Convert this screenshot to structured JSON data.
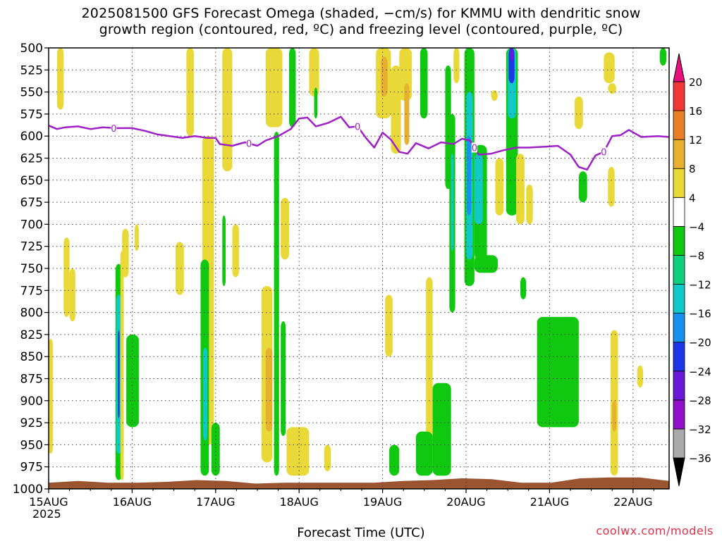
{
  "title_line1": "2025081500 GFS Forecast Omega (shaded, −cm/s) for KMMU with dendritic snow",
  "title_line2": "growth region (contoured, red, ºC) and freezing level (contoured, purple, ºC)",
  "x_axis_label": "Forecast Time (UTC)",
  "credit": "coolwx.com/models",
  "year_label": "2025",
  "colors": {
    "freezing_level": "#a020c8",
    "ground": "#9a5530",
    "gridline": "#444444"
  },
  "chart_data": {
    "type": "heatmap",
    "y_reversed": true,
    "ylim": [
      1000,
      500
    ],
    "xlim": [
      0,
      7.6
    ],
    "y_ticks": [
      500,
      525,
      550,
      575,
      600,
      625,
      650,
      675,
      700,
      725,
      750,
      775,
      800,
      825,
      850,
      875,
      900,
      925,
      950,
      975,
      1000
    ],
    "x_ticks": [
      {
        "value": 0,
        "label": "15AUG"
      },
      {
        "value": 1,
        "label": "16AUG"
      },
      {
        "value": 2,
        "label": "17AUG"
      },
      {
        "value": 3,
        "label": "18AUG"
      },
      {
        "value": 4,
        "label": "19AUG"
      },
      {
        "value": 5,
        "label": "20AUG"
      },
      {
        "value": 6,
        "label": "21AUG"
      },
      {
        "value": 7,
        "label": "22AUG"
      }
    ],
    "grid": true,
    "colorbar": {
      "levels": [
        -36,
        -32,
        -28,
        -24,
        -20,
        -16,
        -12,
        -8,
        -4,
        4,
        8,
        12,
        16,
        20
      ],
      "colors": [
        "#000000",
        "#aaaaaa",
        "#9010c8",
        "#6a18d8",
        "#1c36e8",
        "#1890f0",
        "#10c8c8",
        "#10d080",
        "#10c810",
        "#ffffff",
        "#e8d838",
        "#e8b030",
        "#e88028",
        "#f03838",
        "#e8107a"
      ]
    },
    "freezing_level": {
      "label": "0",
      "x": [
        0,
        0.1,
        0.2,
        0.35,
        0.5,
        0.65,
        0.8,
        1.0,
        1.15,
        1.3,
        1.45,
        1.6,
        1.75,
        1.9,
        2.0,
        2.05,
        2.2,
        2.35,
        2.5,
        2.6,
        2.75,
        2.9,
        3.0,
        3.1,
        3.2,
        3.35,
        3.5,
        3.6,
        3.7,
        3.8,
        3.9,
        4.0,
        4.1,
        4.2,
        4.3,
        4.4,
        4.55,
        4.7,
        4.85,
        4.95,
        5.05,
        5.15,
        5.3,
        5.45,
        5.6,
        5.75,
        5.95,
        6.1,
        6.25,
        6.35,
        6.45,
        6.55,
        6.65,
        6.75,
        6.85,
        6.95,
        7.1,
        7.3,
        7.45,
        7.6
      ],
      "y": [
        588,
        592,
        590,
        589,
        592,
        590,
        591,
        591,
        594,
        598,
        600,
        602,
        600,
        602,
        602,
        609,
        611,
        607,
        611,
        605,
        600,
        592,
        580,
        579,
        589,
        585,
        578,
        590,
        589,
        602,
        613,
        596,
        604,
        618,
        620,
        608,
        614,
        607,
        609,
        603,
        605,
        621,
        620,
        616,
        613,
        613,
        612,
        611,
        621,
        635,
        638,
        622,
        618,
        600,
        599,
        593,
        601,
        600,
        601,
        601
      ]
    },
    "ground_pressure": [
      993,
      991,
      993,
      993,
      992,
      990,
      991,
      994,
      993,
      993,
      993,
      993,
      991,
      990,
      988,
      989,
      993,
      993,
      988,
      987,
      987,
      991
    ],
    "omega_regions": [
      {
        "x0": 0.1,
        "x1": 0.18,
        "p0": 500,
        "p1": 570,
        "level": 4
      },
      {
        "x0": 0.0,
        "x1": 0.05,
        "p0": 830,
        "p1": 960,
        "level": 4
      },
      {
        "x0": 0.18,
        "x1": 0.25,
        "p0": 715,
        "p1": 805,
        "level": 4
      },
      {
        "x0": 0.25,
        "x1": 0.32,
        "p0": 750,
        "p1": 810,
        "level": 4
      },
      {
        "x0": 0.8,
        "x1": 0.88,
        "p0": 745,
        "p1": 990,
        "level": -4
      },
      {
        "x0": 0.81,
        "x1": 0.87,
        "p0": 780,
        "p1": 960,
        "level": -12
      },
      {
        "x0": 0.83,
        "x1": 0.85,
        "p0": 820,
        "p1": 920,
        "level": -20
      },
      {
        "x0": 0.86,
        "x1": 0.9,
        "p0": 730,
        "p1": 990,
        "level": 4
      },
      {
        "x0": 0.93,
        "x1": 1.08,
        "p0": 825,
        "p1": 930,
        "level": -4
      },
      {
        "x0": 0.88,
        "x1": 0.96,
        "p0": 705,
        "p1": 760,
        "level": 4
      },
      {
        "x0": 1.03,
        "x1": 1.08,
        "p0": 700,
        "p1": 730,
        "level": 4
      },
      {
        "x0": 1.52,
        "x1": 1.62,
        "p0": 720,
        "p1": 780,
        "level": 4
      },
      {
        "x0": 1.65,
        "x1": 1.74,
        "p0": 500,
        "p1": 600,
        "level": 4
      },
      {
        "x0": 1.84,
        "x1": 1.98,
        "p0": 600,
        "p1": 950,
        "level": 4
      },
      {
        "x0": 1.82,
        "x1": 1.92,
        "p0": 740,
        "p1": 985,
        "level": -4
      },
      {
        "x0": 1.85,
        "x1": 1.9,
        "p0": 840,
        "p1": 945,
        "level": -12
      },
      {
        "x0": 1.95,
        "x1": 2.05,
        "p0": 925,
        "p1": 985,
        "level": -4
      },
      {
        "x0": 2.08,
        "x1": 2.2,
        "p0": 500,
        "p1": 640,
        "level": 4
      },
      {
        "x0": 2.08,
        "x1": 2.12,
        "p0": 690,
        "p1": 770,
        "level": -4
      },
      {
        "x0": 2.2,
        "x1": 2.28,
        "p0": 700,
        "p1": 760,
        "level": 4
      },
      {
        "x0": 2.6,
        "x1": 2.8,
        "p0": 500,
        "p1": 590,
        "level": 4
      },
      {
        "x0": 2.55,
        "x1": 2.68,
        "p0": 770,
        "p1": 970,
        "level": 4
      },
      {
        "x0": 2.6,
        "x1": 2.68,
        "p0": 840,
        "p1": 935,
        "level": 8
      },
      {
        "x0": 2.7,
        "x1": 2.76,
        "p0": 595,
        "p1": 985,
        "level": -4
      },
      {
        "x0": 2.78,
        "x1": 2.88,
        "p0": 670,
        "p1": 740,
        "level": 4
      },
      {
        "x0": 2.78,
        "x1": 2.84,
        "p0": 810,
        "p1": 940,
        "level": -4
      },
      {
        "x0": 2.88,
        "x1": 2.96,
        "p0": 500,
        "p1": 590,
        "level": -4
      },
      {
        "x0": 2.85,
        "x1": 3.12,
        "p0": 930,
        "p1": 985,
        "level": 4
      },
      {
        "x0": 3.12,
        "x1": 3.24,
        "p0": 500,
        "p1": 555,
        "level": 4
      },
      {
        "x0": 3.18,
        "x1": 3.22,
        "p0": 545,
        "p1": 580,
        "level": -4
      },
      {
        "x0": 3.3,
        "x1": 3.38,
        "p0": 950,
        "p1": 980,
        "level": 4
      },
      {
        "x0": 3.92,
        "x1": 4.1,
        "p0": 500,
        "p1": 580,
        "level": 4
      },
      {
        "x0": 3.98,
        "x1": 4.06,
        "p0": 510,
        "p1": 555,
        "level": 8
      },
      {
        "x0": 4.1,
        "x1": 4.22,
        "p0": 520,
        "p1": 620,
        "level": 4
      },
      {
        "x0": 4.03,
        "x1": 4.12,
        "p0": 780,
        "p1": 850,
        "level": 4
      },
      {
        "x0": 4.2,
        "x1": 4.35,
        "p0": 500,
        "p1": 560,
        "level": 4
      },
      {
        "x0": 4.26,
        "x1": 4.32,
        "p0": 540,
        "p1": 610,
        "level": 8
      },
      {
        "x0": 4.45,
        "x1": 4.54,
        "p0": 500,
        "p1": 580,
        "level": -4
      },
      {
        "x0": 4.52,
        "x1": 4.6,
        "p0": 760,
        "p1": 950,
        "level": 4
      },
      {
        "x0": 4.08,
        "x1": 4.2,
        "p0": 950,
        "p1": 985,
        "level": -4
      },
      {
        "x0": 4.4,
        "x1": 4.6,
        "p0": 935,
        "p1": 985,
        "level": -4
      },
      {
        "x0": 4.6,
        "x1": 4.82,
        "p0": 880,
        "p1": 985,
        "level": -4
      },
      {
        "x0": 4.75,
        "x1": 4.82,
        "p0": 520,
        "p1": 660,
        "level": -4
      },
      {
        "x0": 4.8,
        "x1": 4.87,
        "p0": 575,
        "p1": 800,
        "level": -4
      },
      {
        "x0": 4.82,
        "x1": 4.85,
        "p0": 620,
        "p1": 730,
        "level": -12
      },
      {
        "x0": 4.85,
        "x1": 4.92,
        "p0": 500,
        "p1": 540,
        "level": 4
      },
      {
        "x0": 4.98,
        "x1": 5.1,
        "p0": 500,
        "p1": 770,
        "level": -4
      },
      {
        "x0": 5.0,
        "x1": 5.08,
        "p0": 550,
        "p1": 740,
        "level": -12
      },
      {
        "x0": 5.01,
        "x1": 5.06,
        "p0": 600,
        "p1": 690,
        "level": -16
      },
      {
        "x0": 5.1,
        "x1": 5.25,
        "p0": 610,
        "p1": 740,
        "level": -4
      },
      {
        "x0": 5.1,
        "x1": 5.2,
        "p0": 620,
        "p1": 700,
        "level": -12
      },
      {
        "x0": 5.1,
        "x1": 5.38,
        "p0": 735,
        "p1": 755,
        "level": -4
      },
      {
        "x0": 5.3,
        "x1": 5.38,
        "p0": 548,
        "p1": 560,
        "level": 4
      },
      {
        "x0": 5.35,
        "x1": 5.45,
        "p0": 625,
        "p1": 690,
        "level": 4
      },
      {
        "x0": 5.48,
        "x1": 5.62,
        "p0": 500,
        "p1": 690,
        "level": -4
      },
      {
        "x0": 5.5,
        "x1": 5.6,
        "p0": 500,
        "p1": 580,
        "level": -12
      },
      {
        "x0": 5.51,
        "x1": 5.58,
        "p0": 500,
        "p1": 540,
        "level": -20
      },
      {
        "x0": 5.53,
        "x1": 5.57,
        "p0": 500,
        "p1": 515,
        "level": -24
      },
      {
        "x0": 5.6,
        "x1": 5.7,
        "p0": 620,
        "p1": 700,
        "level": 4
      },
      {
        "x0": 5.65,
        "x1": 5.72,
        "p0": 760,
        "p1": 785,
        "level": -4
      },
      {
        "x0": 5.72,
        "x1": 5.8,
        "p0": 655,
        "p1": 700,
        "level": 4
      },
      {
        "x0": 5.85,
        "x1": 6.35,
        "p0": 805,
        "p1": 930,
        "level": -4
      },
      {
        "x0": 6.3,
        "x1": 6.4,
        "p0": 555,
        "p1": 592,
        "level": 4
      },
      {
        "x0": 6.35,
        "x1": 6.45,
        "p0": 640,
        "p1": 675,
        "level": -4
      },
      {
        "x0": 6.65,
        "x1": 6.78,
        "p0": 505,
        "p1": 540,
        "level": 4
      },
      {
        "x0": 6.7,
        "x1": 6.8,
        "p0": 540,
        "p1": 552,
        "level": 4
      },
      {
        "x0": 6.73,
        "x1": 6.82,
        "p0": 820,
        "p1": 985,
        "level": 4
      },
      {
        "x0": 6.75,
        "x1": 6.8,
        "p0": 900,
        "p1": 935,
        "level": 8
      },
      {
        "x0": 6.7,
        "x1": 6.78,
        "p0": 635,
        "p1": 680,
        "level": 4
      },
      {
        "x0": 7.05,
        "x1": 7.12,
        "p0": 860,
        "p1": 885,
        "level": 4
      },
      {
        "x0": 7.32,
        "x1": 7.4,
        "p0": 500,
        "p1": 520,
        "level": -4
      }
    ]
  }
}
